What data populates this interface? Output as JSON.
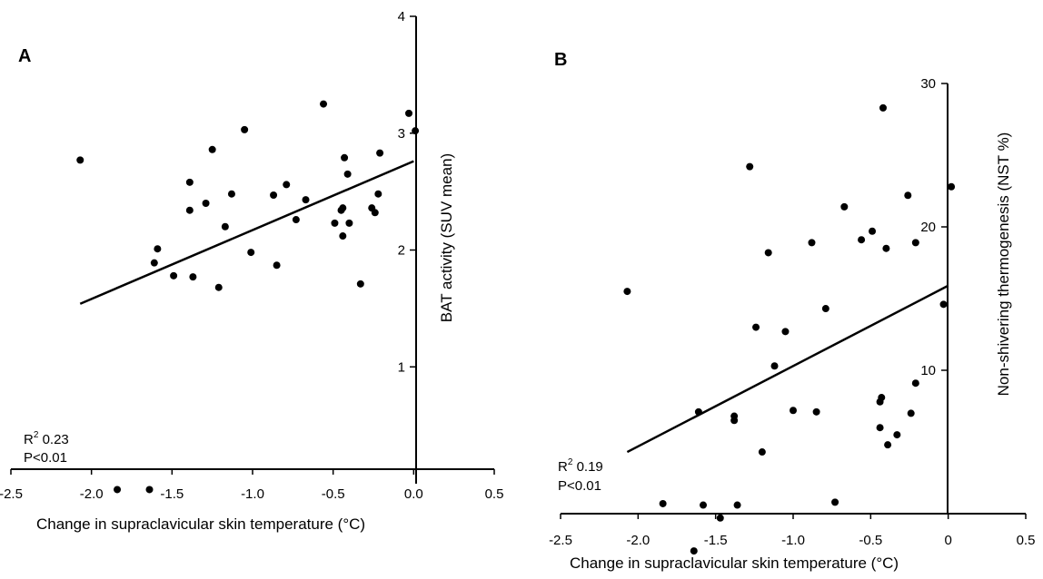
{
  "chart_data": [
    {
      "panel": "A",
      "type": "scatter",
      "xlabel": "Change in supraclavicular skin temperature (°C)",
      "ylabel": "BAT activity (SUV mean)",
      "xlim": [
        -2.5,
        0.5
      ],
      "ylim": [
        0,
        4
      ],
      "xticks": [
        "-2.5",
        "-2.0",
        "-1.5",
        "-1.0",
        "-0.5",
        "0.0",
        "0.5"
      ],
      "yticks": [
        "1",
        "2",
        "3",
        "4"
      ],
      "fit_line": {
        "x": [
          -2.07,
          0.0
        ],
        "y": [
          1.54,
          2.76
        ]
      },
      "stats": {
        "r2_label": "R",
        "r2_sup": "2",
        "r2_value": " 0.23",
        "p_label": "P<0.01"
      },
      "points": [
        {
          "x": -2.07,
          "y": 2.77
        },
        {
          "x": -1.84,
          "y": -0.05
        },
        {
          "x": -1.64,
          "y": -0.05
        },
        {
          "x": -1.61,
          "y": 1.89
        },
        {
          "x": -1.59,
          "y": 2.01
        },
        {
          "x": -1.49,
          "y": 1.78
        },
        {
          "x": -1.39,
          "y": 2.58
        },
        {
          "x": -1.39,
          "y": 2.34
        },
        {
          "x": -1.37,
          "y": 1.77
        },
        {
          "x": -1.29,
          "y": 2.4
        },
        {
          "x": -1.25,
          "y": 2.86
        },
        {
          "x": -1.21,
          "y": 1.68
        },
        {
          "x": -1.17,
          "y": 2.2
        },
        {
          "x": -1.13,
          "y": 2.48
        },
        {
          "x": -1.05,
          "y": 3.03
        },
        {
          "x": -1.01,
          "y": 1.98
        },
        {
          "x": -0.87,
          "y": 2.47
        },
        {
          "x": -0.85,
          "y": 1.87
        },
        {
          "x": -0.79,
          "y": 2.56
        },
        {
          "x": -0.73,
          "y": 2.26
        },
        {
          "x": -0.67,
          "y": 2.43
        },
        {
          "x": -0.56,
          "y": 3.25
        },
        {
          "x": -0.49,
          "y": 2.23
        },
        {
          "x": -0.45,
          "y": 2.34
        },
        {
          "x": -0.44,
          "y": 2.36
        },
        {
          "x": -0.44,
          "y": 2.12
        },
        {
          "x": -0.43,
          "y": 2.79
        },
        {
          "x": -0.41,
          "y": 2.65
        },
        {
          "x": -0.4,
          "y": 2.23
        },
        {
          "x": -0.33,
          "y": 1.71
        },
        {
          "x": -0.26,
          "y": 2.36
        },
        {
          "x": -0.24,
          "y": 2.32
        },
        {
          "x": -0.22,
          "y": 2.48
        },
        {
          "x": -0.21,
          "y": 2.83
        },
        {
          "x": -0.03,
          "y": 3.17
        },
        {
          "x": 0.01,
          "y": 3.02
        }
      ]
    },
    {
      "panel": "B",
      "type": "scatter",
      "xlabel": "Change in supraclavicular skin temperature (°C)",
      "ylabel": "Non-shivering thermogenesis (NST %)",
      "xlim": [
        -2.5,
        0.5
      ],
      "ylim": [
        0,
        30
      ],
      "xticks": [
        "-2.5",
        "-2.0",
        "-1.5",
        "-1.0",
        "-0.5",
        "0",
        "0.5"
      ],
      "yticks": [
        "10",
        "20",
        "30"
      ],
      "fit_line": {
        "x": [
          -2.07,
          0.0
        ],
        "y": [
          4.3,
          15.9
        ]
      },
      "stats": {
        "r2_label": "R",
        "r2_sup": "2",
        "r2_value": " 0.19",
        "p_label": "P<0.01"
      },
      "points": [
        {
          "x": -2.07,
          "y": 15.5
        },
        {
          "x": -1.84,
          "y": 0.7
        },
        {
          "x": -1.64,
          "y": -2.6
        },
        {
          "x": -1.61,
          "y": 7.1
        },
        {
          "x": -1.58,
          "y": 0.6
        },
        {
          "x": -1.47,
          "y": -0.3
        },
        {
          "x": -1.38,
          "y": 6.8
        },
        {
          "x": -1.38,
          "y": 6.5
        },
        {
          "x": -1.36,
          "y": 0.6
        },
        {
          "x": -1.28,
          "y": 24.2
        },
        {
          "x": -1.24,
          "y": 13.0
        },
        {
          "x": -1.2,
          "y": 4.3
        },
        {
          "x": -1.16,
          "y": 18.2
        },
        {
          "x": -1.12,
          "y": 10.3
        },
        {
          "x": -1.05,
          "y": 12.7
        },
        {
          "x": -1.0,
          "y": 7.2
        },
        {
          "x": -0.88,
          "y": 18.9
        },
        {
          "x": -0.85,
          "y": 7.1
        },
        {
          "x": -0.79,
          "y": 14.3
        },
        {
          "x": -0.73,
          "y": 0.8
        },
        {
          "x": -0.67,
          "y": 21.4
        },
        {
          "x": -0.56,
          "y": 19.1
        },
        {
          "x": -0.49,
          "y": 19.7
        },
        {
          "x": -0.44,
          "y": 7.8
        },
        {
          "x": -0.44,
          "y": 6.0
        },
        {
          "x": -0.43,
          "y": 8.1
        },
        {
          "x": -0.42,
          "y": 28.3
        },
        {
          "x": -0.4,
          "y": 18.5
        },
        {
          "x": -0.39,
          "y": 4.8
        },
        {
          "x": -0.33,
          "y": 5.5
        },
        {
          "x": -0.26,
          "y": 22.2
        },
        {
          "x": -0.24,
          "y": 7.0
        },
        {
          "x": -0.21,
          "y": 18.9
        },
        {
          "x": -0.21,
          "y": 9.1
        },
        {
          "x": -0.03,
          "y": 14.6
        },
        {
          "x": 0.02,
          "y": 22.8
        }
      ]
    }
  ],
  "panel_labels": [
    "A",
    "B"
  ]
}
